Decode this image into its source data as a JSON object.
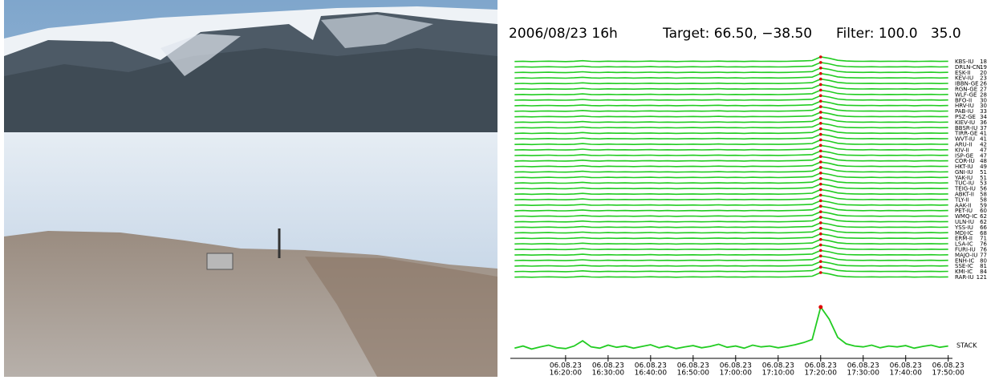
{
  "chart_data": {
    "type": "line",
    "title_date": "2006/08/23 16h",
    "title_target": "Target: 66.50, −38.50",
    "title_filter": "Filter: 100.0   35.0",
    "stations": [
      {
        "name": "KBS-IU",
        "dist": 18
      },
      {
        "name": "DRLN-CN",
        "dist": 19
      },
      {
        "name": "ESK-II",
        "dist": 20
      },
      {
        "name": "KEV-IU",
        "dist": 23
      },
      {
        "name": "IBBN-GE",
        "dist": 26
      },
      {
        "name": "RGN-GE",
        "dist": 27
      },
      {
        "name": "WLF-GE",
        "dist": 28
      },
      {
        "name": "BFO-II",
        "dist": 30
      },
      {
        "name": "HRV-IU",
        "dist": 30
      },
      {
        "name": "PAB-IU",
        "dist": 33
      },
      {
        "name": "PSZ-GE",
        "dist": 34
      },
      {
        "name": "KIEV-IU",
        "dist": 36
      },
      {
        "name": "BBSR-IU",
        "dist": 37
      },
      {
        "name": "TIRR-GE",
        "dist": 41
      },
      {
        "name": "WVT-IU",
        "dist": 41
      },
      {
        "name": "ARU-II",
        "dist": 42
      },
      {
        "name": "KIV-II",
        "dist": 47
      },
      {
        "name": "ISP-GE",
        "dist": 47
      },
      {
        "name": "COR-IU",
        "dist": 48
      },
      {
        "name": "HKT-IU",
        "dist": 49
      },
      {
        "name": "GNI-IU",
        "dist": 51
      },
      {
        "name": "YAK-IU",
        "dist": 51
      },
      {
        "name": "TUC-IU",
        "dist": 53
      },
      {
        "name": "TEIG-IU",
        "dist": 56
      },
      {
        "name": "ABKT-II",
        "dist": 58
      },
      {
        "name": "TLY-II",
        "dist": 58
      },
      {
        "name": "AAK-II",
        "dist": 59
      },
      {
        "name": "PET-IU",
        "dist": 60
      },
      {
        "name": "WMQ-IC",
        "dist": 62
      },
      {
        "name": "ULN-IU",
        "dist": 62
      },
      {
        "name": "YSS-IU",
        "dist": 66
      },
      {
        "name": "MDJ-IC",
        "dist": 68
      },
      {
        "name": "ERM-II",
        "dist": 71
      },
      {
        "name": "LSA-IC",
        "dist": 76
      },
      {
        "name": "FURI-IU",
        "dist": 76
      },
      {
        "name": "MAJO-IU",
        "dist": 77
      },
      {
        "name": "ENH-IC",
        "dist": 80
      },
      {
        "name": "SSE-IC",
        "dist": 81
      },
      {
        "name": "KMI-IC",
        "dist": 84
      },
      {
        "name": "RAR-IU",
        "dist": 121
      }
    ],
    "x": [
      "16:08",
      "16:10",
      "16:12",
      "16:14",
      "16:16",
      "16:18",
      "16:20",
      "16:22",
      "16:24",
      "16:26",
      "16:28",
      "16:30",
      "16:32",
      "16:34",
      "16:36",
      "16:38",
      "16:40",
      "16:42",
      "16:44",
      "16:46",
      "16:48",
      "16:50",
      "16:52",
      "16:54",
      "16:56",
      "16:58",
      "17:00",
      "17:02",
      "17:04",
      "17:06",
      "17:08",
      "17:10",
      "17:12",
      "17:14",
      "17:16",
      "17:18",
      "17:20",
      "17:22",
      "17:24",
      "17:26",
      "17:28",
      "17:30",
      "17:32",
      "17:34",
      "17:36",
      "17:38",
      "17:40",
      "17:42",
      "17:44",
      "17:46",
      "17:48",
      "17:50"
    ],
    "series": [
      {
        "name": "STACK",
        "color": "#22cc22",
        "peak_color": "#e00000",
        "values": [
          0.05,
          0.1,
          0.03,
          0.08,
          0.12,
          0.06,
          0.04,
          0.1,
          0.22,
          0.08,
          0.05,
          0.12,
          0.07,
          0.1,
          0.05,
          0.09,
          0.13,
          0.06,
          0.1,
          0.04,
          0.08,
          0.11,
          0.06,
          0.09,
          0.14,
          0.07,
          0.1,
          0.05,
          0.12,
          0.08,
          0.1,
          0.06,
          0.09,
          0.13,
          0.18,
          0.25,
          1.0,
          0.72,
          0.3,
          0.15,
          0.1,
          0.08,
          0.12,
          0.06,
          0.1,
          0.08,
          0.11,
          0.05,
          0.09,
          0.12,
          0.07,
          0.1
        ]
      }
    ],
    "ylim": [
      0,
      1
    ],
    "xlim": [
      "16:07:00",
      "17:51:00"
    ],
    "xtick_date": "06.08.23",
    "xticks": [
      "16:20:00",
      "16:30:00",
      "16:40:00",
      "16:50:00",
      "17:00:00",
      "17:10:00",
      "17:20:00",
      "17:30:00",
      "17:40:00",
      "17:50:00"
    ]
  }
}
